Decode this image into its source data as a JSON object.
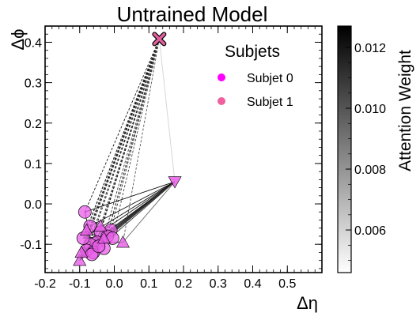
{
  "chart_data": {
    "type": "scatter",
    "title": "Untrained Model",
    "xlabel": "Δη",
    "ylabel": "Δϕ",
    "xlim": [
      -0.2,
      0.6
    ],
    "ylim": [
      -0.17,
      0.44
    ],
    "x_ticks": [
      "-0.2",
      "-0.1",
      "0.0",
      "0.1",
      "0.2",
      "0.3",
      "0.4",
      "0.5"
    ],
    "y_ticks": [
      "-0.1",
      "0.0",
      "0.1",
      "0.2",
      "0.3",
      "0.4"
    ],
    "x_tick_values": [
      -0.2,
      -0.1,
      0.0,
      0.1,
      0.2,
      0.3,
      0.4,
      0.5
    ],
    "y_tick_values": [
      -0.1,
      0.0,
      0.1,
      0.2,
      0.3,
      0.4
    ],
    "legend": {
      "title": "Subjets",
      "position": "top-right",
      "entries": [
        {
          "label": "Subjet 0",
          "color": "#ff00ff"
        },
        {
          "label": "Subjet 1",
          "color": "#f0609e"
        }
      ]
    },
    "colorbar": {
      "label": "Attention Weight",
      "range": [
        0.0046,
        0.0127
      ],
      "tick_values": [
        0.006,
        0.008,
        0.01,
        0.012
      ],
      "tick_labels": [
        "0.006",
        "0.008",
        "0.010",
        "0.012"
      ]
    },
    "markers": {
      "cross": {
        "x": 0.13,
        "y": 0.408,
        "color": "#e0609e"
      },
      "triangles_down": [
        {
          "x": 0.175,
          "y": 0.055
        }
      ],
      "triangles_up": [
        {
          "x": -0.04,
          "y": -0.055
        },
        {
          "x": 0.025,
          "y": -0.095
        },
        {
          "x": -0.1,
          "y": -0.14
        },
        {
          "x": -0.095,
          "y": -0.12
        },
        {
          "x": -0.08,
          "y": -0.065
        },
        {
          "x": -0.03,
          "y": -0.085
        }
      ],
      "circles": [
        {
          "x": -0.085,
          "y": -0.02
        },
        {
          "x": -0.07,
          "y": -0.055
        },
        {
          "x": -0.04,
          "y": -0.07
        },
        {
          "x": -0.01,
          "y": -0.065
        },
        {
          "x": -0.02,
          "y": -0.08
        },
        {
          "x": -0.05,
          "y": -0.095
        },
        {
          "x": -0.07,
          "y": -0.1
        },
        {
          "x": -0.08,
          "y": -0.115
        },
        {
          "x": -0.06,
          "y": -0.12
        },
        {
          "x": -0.03,
          "y": -0.11
        },
        {
          "x": -0.005,
          "y": -0.085
        },
        {
          "x": -0.09,
          "y": -0.085
        },
        {
          "x": -0.065,
          "y": -0.125
        },
        {
          "x": -0.045,
          "y": -0.105
        }
      ]
    },
    "edges": [
      {
        "from": [
          0.13,
          0.408
        ],
        "to": [
          -0.085,
          -0.02
        ],
        "w": 0.0122,
        "dash": true
      },
      {
        "from": [
          0.13,
          0.408
        ],
        "to": [
          -0.07,
          -0.055
        ],
        "w": 0.012,
        "dash": true
      },
      {
        "from": [
          0.13,
          0.408
        ],
        "to": [
          -0.04,
          -0.07
        ],
        "w": 0.0118,
        "dash": true
      },
      {
        "from": [
          0.13,
          0.408
        ],
        "to": [
          -0.01,
          -0.065
        ],
        "w": 0.0115,
        "dash": true
      },
      {
        "from": [
          0.13,
          0.408
        ],
        "to": [
          -0.02,
          -0.08
        ],
        "w": 0.011,
        "dash": true
      },
      {
        "from": [
          0.13,
          0.408
        ],
        "to": [
          -0.05,
          -0.095
        ],
        "w": 0.0121,
        "dash": true
      },
      {
        "from": [
          0.13,
          0.408
        ],
        "to": [
          -0.07,
          -0.1
        ],
        "w": 0.0119,
        "dash": true
      },
      {
        "from": [
          0.13,
          0.408
        ],
        "to": [
          -0.08,
          -0.115
        ],
        "w": 0.0117,
        "dash": true
      },
      {
        "from": [
          0.13,
          0.408
        ],
        "to": [
          -0.06,
          -0.12
        ],
        "w": 0.0113,
        "dash": true
      },
      {
        "from": [
          0.13,
          0.408
        ],
        "to": [
          -0.03,
          -0.11
        ],
        "w": 0.0108,
        "dash": true
      },
      {
        "from": [
          0.13,
          0.408
        ],
        "to": [
          -0.005,
          -0.085
        ],
        "w": 0.0105,
        "dash": true
      },
      {
        "from": [
          0.13,
          0.408
        ],
        "to": [
          -0.09,
          -0.085
        ],
        "w": 0.0123,
        "dash": true
      },
      {
        "from": [
          0.13,
          0.408
        ],
        "to": [
          -0.04,
          -0.055
        ],
        "w": 0.0112,
        "dash": true
      },
      {
        "from": [
          0.13,
          0.408
        ],
        "to": [
          0.025,
          -0.095
        ],
        "w": 0.01,
        "dash": true
      },
      {
        "from": [
          0.13,
          0.408
        ],
        "to": [
          -0.1,
          -0.14
        ],
        "w": 0.0116,
        "dash": true
      },
      {
        "from": [
          0.13,
          0.408
        ],
        "to": [
          -0.095,
          -0.12
        ],
        "w": 0.012,
        "dash": true
      },
      {
        "from": [
          0.13,
          0.408
        ],
        "to": [
          -0.08,
          -0.065
        ],
        "w": 0.0111,
        "dash": true
      },
      {
        "from": [
          0.13,
          0.408
        ],
        "to": [
          -0.03,
          -0.085
        ],
        "w": 0.0107,
        "dash": true
      },
      {
        "from": [
          0.13,
          0.408
        ],
        "to": [
          0.175,
          0.055
        ],
        "w": 0.006,
        "dash": false
      },
      {
        "from": [
          0.175,
          0.055
        ],
        "to": [
          -0.085,
          -0.02
        ],
        "w": 0.0122,
        "dash": false
      },
      {
        "from": [
          0.175,
          0.055
        ],
        "to": [
          -0.07,
          -0.055
        ],
        "w": 0.0119,
        "dash": false
      },
      {
        "from": [
          0.175,
          0.055
        ],
        "to": [
          -0.04,
          -0.07
        ],
        "w": 0.0117,
        "dash": false
      },
      {
        "from": [
          0.175,
          0.055
        ],
        "to": [
          -0.01,
          -0.065
        ],
        "w": 0.0114,
        "dash": false
      },
      {
        "from": [
          0.175,
          0.055
        ],
        "to": [
          -0.02,
          -0.08
        ],
        "w": 0.011,
        "dash": false
      },
      {
        "from": [
          0.175,
          0.055
        ],
        "to": [
          -0.05,
          -0.095
        ],
        "w": 0.0121,
        "dash": false
      },
      {
        "from": [
          0.175,
          0.055
        ],
        "to": [
          -0.07,
          -0.1
        ],
        "w": 0.012,
        "dash": false
      },
      {
        "from": [
          0.175,
          0.055
        ],
        "to": [
          -0.08,
          -0.115
        ],
        "w": 0.0118,
        "dash": false
      },
      {
        "from": [
          0.175,
          0.055
        ],
        "to": [
          -0.06,
          -0.12
        ],
        "w": 0.0113,
        "dash": false
      },
      {
        "from": [
          0.175,
          0.055
        ],
        "to": [
          -0.09,
          -0.085
        ],
        "w": 0.0123,
        "dash": false
      },
      {
        "from": [
          0.175,
          0.055
        ],
        "to": [
          -0.1,
          -0.14
        ],
        "w": 0.0115,
        "dash": false
      },
      {
        "from": [
          0.175,
          0.055
        ],
        "to": [
          0.025,
          -0.095
        ],
        "w": 0.0095,
        "dash": false
      },
      {
        "from": [
          0.175,
          0.055
        ],
        "to": [
          -0.03,
          -0.085
        ],
        "w": 0.0108,
        "dash": false
      },
      {
        "from": [
          -0.085,
          -0.02
        ],
        "to": [
          -0.06,
          -0.12
        ],
        "w": 0.012,
        "dash": false
      },
      {
        "from": [
          -0.07,
          -0.055
        ],
        "to": [
          -0.03,
          -0.11
        ],
        "w": 0.0118,
        "dash": false
      },
      {
        "from": [
          -0.04,
          -0.07
        ],
        "to": [
          -0.08,
          -0.115
        ],
        "w": 0.0121,
        "dash": false
      },
      {
        "from": [
          -0.01,
          -0.065
        ],
        "to": [
          -0.07,
          -0.1
        ],
        "w": 0.0116,
        "dash": false
      },
      {
        "from": [
          -0.02,
          -0.08
        ],
        "to": [
          -0.09,
          -0.085
        ],
        "w": 0.0119,
        "dash": false
      },
      {
        "from": [
          -0.05,
          -0.095
        ],
        "to": [
          0.025,
          -0.095
        ],
        "w": 0.0112,
        "dash": false
      },
      {
        "from": [
          -0.1,
          -0.14
        ],
        "to": [
          -0.04,
          -0.055
        ],
        "w": 0.0117,
        "dash": false
      },
      {
        "from": [
          -0.095,
          -0.12
        ],
        "to": [
          -0.01,
          -0.065
        ],
        "w": 0.0122,
        "dash": false
      }
    ]
  }
}
